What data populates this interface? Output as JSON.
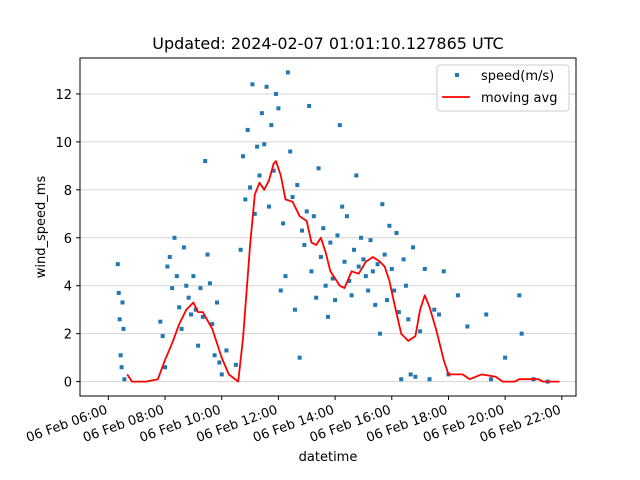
{
  "chart_data": {
    "type": "scatter",
    "title": "Updated: 2024-02-07 01:01:10.127865 UTC",
    "xlabel": "datetime",
    "ylabel": "wind_speed_ms",
    "xlim": [
      "2024-02-06 05:00",
      "2024-02-06 22:30"
    ],
    "ylim": [
      -0.6,
      13.5
    ],
    "x_ticks": [
      "06 Feb 06:00",
      "06 Feb 08:00",
      "06 Feb 10:00",
      "06 Feb 12:00",
      "06 Feb 14:00",
      "06 Feb 16:00",
      "06 Feb 18:00",
      "06 Feb 20:00",
      "06 Feb 22:00"
    ],
    "y_ticks": [
      0,
      2,
      4,
      6,
      8,
      10,
      12
    ],
    "grid": "horizontal",
    "legend_position": "top-right",
    "colors": {
      "scatter": "#1f77b4",
      "moving_avg": "#ff0000"
    },
    "series": [
      {
        "name": "speed(m/s)",
        "kind": "scatter",
        "points": [
          [
            "06:20",
            4.9
          ],
          [
            "06:22",
            3.7
          ],
          [
            "06:24",
            2.6
          ],
          [
            "06:26",
            1.1
          ],
          [
            "06:28",
            0.6
          ],
          [
            "06:30",
            3.3
          ],
          [
            "06:32",
            2.2
          ],
          [
            "06:34",
            0.1
          ],
          [
            "07:50",
            2.5
          ],
          [
            "07:55",
            1.9
          ],
          [
            "08:00",
            0.6
          ],
          [
            "08:05",
            4.8
          ],
          [
            "08:10",
            5.2
          ],
          [
            "08:15",
            3.9
          ],
          [
            "08:20",
            6.0
          ],
          [
            "08:25",
            4.4
          ],
          [
            "08:30",
            3.1
          ],
          [
            "08:35",
            2.2
          ],
          [
            "08:40",
            5.6
          ],
          [
            "08:45",
            4.0
          ],
          [
            "08:50",
            3.5
          ],
          [
            "08:55",
            2.8
          ],
          [
            "09:00",
            4.4
          ],
          [
            "09:05",
            3.0
          ],
          [
            "09:10",
            1.5
          ],
          [
            "09:15",
            3.9
          ],
          [
            "09:20",
            2.7
          ],
          [
            "09:25",
            9.2
          ],
          [
            "09:30",
            5.3
          ],
          [
            "09:35",
            4.1
          ],
          [
            "09:40",
            2.4
          ],
          [
            "09:45",
            1.1
          ],
          [
            "09:50",
            3.3
          ],
          [
            "09:55",
            0.8
          ],
          [
            "10:00",
            0.3
          ],
          [
            "10:10",
            1.3
          ],
          [
            "10:30",
            0.7
          ],
          [
            "10:40",
            5.5
          ],
          [
            "10:45",
            9.4
          ],
          [
            "10:50",
            7.6
          ],
          [
            "10:55",
            10.5
          ],
          [
            "11:00",
            8.1
          ],
          [
            "11:05",
            12.4
          ],
          [
            "11:10",
            7.0
          ],
          [
            "11:15",
            9.8
          ],
          [
            "11:20",
            8.6
          ],
          [
            "11:25",
            11.2
          ],
          [
            "11:30",
            9.9
          ],
          [
            "11:35",
            12.3
          ],
          [
            "11:40",
            7.3
          ],
          [
            "11:45",
            10.7
          ],
          [
            "11:50",
            8.8
          ],
          [
            "11:55",
            12.0
          ],
          [
            "12:00",
            11.4
          ],
          [
            "12:05",
            3.8
          ],
          [
            "12:10",
            6.6
          ],
          [
            "12:15",
            4.4
          ],
          [
            "12:20",
            12.9
          ],
          [
            "12:25",
            9.6
          ],
          [
            "12:30",
            7.7
          ],
          [
            "12:35",
            3.0
          ],
          [
            "12:40",
            8.2
          ],
          [
            "12:45",
            1.0
          ],
          [
            "12:50",
            6.3
          ],
          [
            "12:55",
            5.7
          ],
          [
            "13:00",
            7.1
          ],
          [
            "13:05",
            11.5
          ],
          [
            "13:10",
            4.6
          ],
          [
            "13:15",
            6.9
          ],
          [
            "13:20",
            3.5
          ],
          [
            "13:25",
            8.9
          ],
          [
            "13:30",
            5.2
          ],
          [
            "13:35",
            6.4
          ],
          [
            "13:40",
            4.0
          ],
          [
            "13:45",
            2.7
          ],
          [
            "13:50",
            5.8
          ],
          [
            "13:55",
            4.3
          ],
          [
            "14:00",
            3.4
          ],
          [
            "14:05",
            6.1
          ],
          [
            "14:10",
            10.7
          ],
          [
            "14:15",
            7.3
          ],
          [
            "14:20",
            5.0
          ],
          [
            "14:25",
            6.9
          ],
          [
            "14:30",
            4.2
          ],
          [
            "14:35",
            3.6
          ],
          [
            "14:40",
            5.5
          ],
          [
            "14:45",
            8.6
          ],
          [
            "14:50",
            4.8
          ],
          [
            "14:55",
            6.0
          ],
          [
            "15:00",
            5.1
          ],
          [
            "15:05",
            4.4
          ],
          [
            "15:10",
            3.8
          ],
          [
            "15:15",
            5.9
          ],
          [
            "15:20",
            4.6
          ],
          [
            "15:25",
            3.2
          ],
          [
            "15:30",
            4.9
          ],
          [
            "15:35",
            2.0
          ],
          [
            "15:40",
            7.4
          ],
          [
            "15:45",
            5.3
          ],
          [
            "15:50",
            3.4
          ],
          [
            "15:55",
            6.5
          ],
          [
            "16:00",
            4.7
          ],
          [
            "16:05",
            3.8
          ],
          [
            "16:10",
            6.2
          ],
          [
            "16:15",
            2.9
          ],
          [
            "16:20",
            0.1
          ],
          [
            "16:25",
            5.1
          ],
          [
            "16:30",
            4.0
          ],
          [
            "16:35",
            2.6
          ],
          [
            "16:40",
            0.3
          ],
          [
            "16:45",
            5.6
          ],
          [
            "16:50",
            0.2
          ],
          [
            "17:00",
            2.1
          ],
          [
            "17:10",
            4.7
          ],
          [
            "17:20",
            0.1
          ],
          [
            "17:30",
            3.0
          ],
          [
            "17:40",
            2.8
          ],
          [
            "17:50",
            4.6
          ],
          [
            "18:00",
            0.3
          ],
          [
            "18:20",
            3.6
          ],
          [
            "18:40",
            2.3
          ],
          [
            "19:20",
            2.8
          ],
          [
            "19:30",
            0.1
          ],
          [
            "20:00",
            1.0
          ],
          [
            "20:30",
            3.6
          ],
          [
            "20:35",
            2.0
          ],
          [
            "21:00",
            0.1
          ],
          [
            "21:30",
            0.0
          ]
        ]
      },
      {
        "name": "moving avg",
        "kind": "line",
        "points": [
          [
            "06:40",
            0.3
          ],
          [
            "06:50",
            0.0
          ],
          [
            "07:20",
            0.0
          ],
          [
            "07:45",
            0.1
          ],
          [
            "08:00",
            0.9
          ],
          [
            "08:15",
            1.6
          ],
          [
            "08:30",
            2.4
          ],
          [
            "08:45",
            3.0
          ],
          [
            "09:00",
            3.3
          ],
          [
            "09:10",
            2.9
          ],
          [
            "09:20",
            2.9
          ],
          [
            "09:40",
            2.2
          ],
          [
            "10:00",
            1.0
          ],
          [
            "10:15",
            0.3
          ],
          [
            "10:35",
            0.0
          ],
          [
            "10:45",
            1.8
          ],
          [
            "11:00",
            5.7
          ],
          [
            "11:10",
            7.8
          ],
          [
            "11:20",
            8.3
          ],
          [
            "11:30",
            8.0
          ],
          [
            "11:40",
            8.4
          ],
          [
            "11:50",
            9.1
          ],
          [
            "11:55",
            9.2
          ],
          [
            "12:05",
            8.6
          ],
          [
            "12:15",
            7.6
          ],
          [
            "12:30",
            7.5
          ],
          [
            "12:45",
            6.9
          ],
          [
            "13:00",
            6.7
          ],
          [
            "13:10",
            5.8
          ],
          [
            "13:20",
            5.7
          ],
          [
            "13:30",
            6.0
          ],
          [
            "13:40",
            5.4
          ],
          [
            "13:50",
            4.6
          ],
          [
            "14:00",
            4.3
          ],
          [
            "14:10",
            4.0
          ],
          [
            "14:20",
            3.9
          ],
          [
            "14:35",
            4.6
          ],
          [
            "14:50",
            4.5
          ],
          [
            "15:05",
            5.0
          ],
          [
            "15:20",
            5.2
          ],
          [
            "15:35",
            5.0
          ],
          [
            "15:45",
            4.8
          ],
          [
            "15:55",
            4.2
          ],
          [
            "16:05",
            3.3
          ],
          [
            "16:20",
            2.0
          ],
          [
            "16:35",
            1.7
          ],
          [
            "16:50",
            1.9
          ],
          [
            "17:00",
            3.0
          ],
          [
            "17:10",
            3.6
          ],
          [
            "17:20",
            3.1
          ],
          [
            "17:35",
            2.1
          ],
          [
            "17:50",
            0.9
          ],
          [
            "18:00",
            0.3
          ],
          [
            "18:30",
            0.3
          ],
          [
            "18:45",
            0.1
          ],
          [
            "19:10",
            0.3
          ],
          [
            "19:40",
            0.2
          ],
          [
            "19:55",
            0.0
          ],
          [
            "20:20",
            0.0
          ],
          [
            "20:30",
            0.1
          ],
          [
            "21:10",
            0.1
          ],
          [
            "21:20",
            0.0
          ],
          [
            "21:55",
            0.0
          ]
        ]
      }
    ]
  }
}
